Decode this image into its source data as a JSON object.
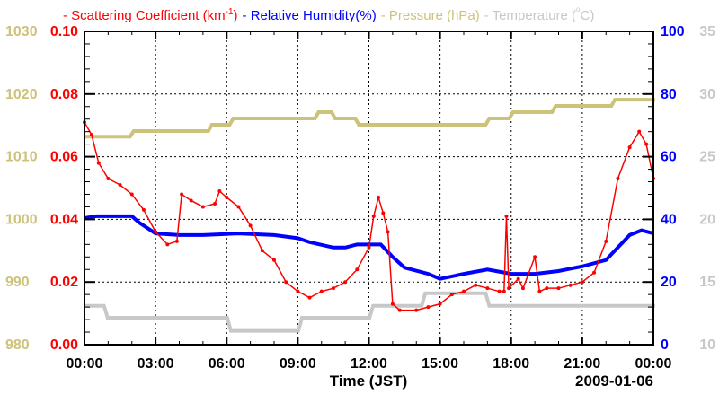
{
  "chart_data": {
    "type": "line",
    "title": "",
    "xlabel": "Time (JST)",
    "date_label": "2009-01-06",
    "xlim": [
      0,
      24
    ],
    "x_ticks": [
      0,
      3,
      6,
      9,
      12,
      15,
      18,
      21,
      24
    ],
    "x_tick_labels": [
      "00:00",
      "03:00",
      "06:00",
      "09:00",
      "12:00",
      "15:00",
      "18:00",
      "21:00",
      "00:00"
    ],
    "grid": true,
    "legend_position": "top",
    "axes": {
      "scatter": {
        "range": [
          0,
          0.1
        ],
        "ticks": [
          "0.00",
          "0.02",
          "0.04",
          "0.06",
          "0.08",
          "0.10"
        ],
        "side": "left-inner",
        "color": "#ff0000"
      },
      "pressure": {
        "range": [
          980,
          1030
        ],
        "ticks": [
          "980",
          "990",
          "1000",
          "1010",
          "1020",
          "1030"
        ],
        "side": "left-outer",
        "color": "#cdc27a"
      },
      "humidity": {
        "range": [
          0,
          100
        ],
        "ticks": [
          "0",
          "20",
          "40",
          "60",
          "80",
          "100"
        ],
        "side": "right-inner",
        "color": "#0000ff"
      },
      "temperature": {
        "range": [
          10,
          35
        ],
        "ticks": [
          "10",
          "15",
          "20",
          "25",
          "30",
          "35"
        ],
        "side": "right-outer",
        "color": "#c8c8c8"
      }
    },
    "series": [
      {
        "name": "Scattering Coefficient",
        "legend": "- Scattering Coefficient (km",
        "legend_sup": "-1",
        "legend_tail": ")",
        "axis": "scatter",
        "color": "#ff0000",
        "markers": true,
        "points": [
          [
            0,
            0.071
          ],
          [
            0.3,
            0.067
          ],
          [
            0.6,
            0.058
          ],
          [
            1,
            0.053
          ],
          [
            1.5,
            0.051
          ],
          [
            2,
            0.048
          ],
          [
            2.5,
            0.043
          ],
          [
            3,
            0.036
          ],
          [
            3.5,
            0.032
          ],
          [
            3.9,
            0.033
          ],
          [
            4.1,
            0.048
          ],
          [
            4.5,
            0.046
          ],
          [
            5,
            0.044
          ],
          [
            5.5,
            0.045
          ],
          [
            5.7,
            0.049
          ],
          [
            6,
            0.047
          ],
          [
            6.5,
            0.044
          ],
          [
            7,
            0.038
          ],
          [
            7.5,
            0.03
          ],
          [
            8,
            0.027
          ],
          [
            8.5,
            0.02
          ],
          [
            9,
            0.017
          ],
          [
            9.5,
            0.015
          ],
          [
            10,
            0.017
          ],
          [
            10.5,
            0.018
          ],
          [
            11,
            0.02
          ],
          [
            11.5,
            0.024
          ],
          [
            12,
            0.031
          ],
          [
            12.2,
            0.041
          ],
          [
            12.4,
            0.047
          ],
          [
            12.6,
            0.042
          ],
          [
            12.8,
            0.036
          ],
          [
            13,
            0.013
          ],
          [
            13.3,
            0.011
          ],
          [
            14,
            0.011
          ],
          [
            14.5,
            0.012
          ],
          [
            15,
            0.013
          ],
          [
            15.5,
            0.016
          ],
          [
            16,
            0.017
          ],
          [
            16.5,
            0.019
          ],
          [
            17,
            0.018
          ],
          [
            17.5,
            0.017
          ],
          [
            17.7,
            0.017
          ],
          [
            17.8,
            0.041
          ],
          [
            17.9,
            0.018
          ],
          [
            18.3,
            0.021
          ],
          [
            18.5,
            0.018
          ],
          [
            19,
            0.028
          ],
          [
            19.2,
            0.017
          ],
          [
            19.5,
            0.018
          ],
          [
            20,
            0.018
          ],
          [
            20.5,
            0.019
          ],
          [
            21,
            0.02
          ],
          [
            21.5,
            0.023
          ],
          [
            22,
            0.033
          ],
          [
            22.5,
            0.053
          ],
          [
            23,
            0.063
          ],
          [
            23.4,
            0.068
          ],
          [
            23.7,
            0.064
          ],
          [
            24,
            0.053
          ]
        ]
      },
      {
        "name": "Relative Humidity",
        "legend": "- Relative Humidity(%)",
        "axis": "humidity",
        "color": "#0000ff",
        "markers": false,
        "points": [
          [
            0,
            40.4
          ],
          [
            0.5,
            41
          ],
          [
            2,
            41
          ],
          [
            2.3,
            39
          ],
          [
            3,
            35.5
          ],
          [
            4,
            35
          ],
          [
            5,
            35
          ],
          [
            6.5,
            35.5
          ],
          [
            8,
            35
          ],
          [
            9,
            34
          ],
          [
            9.5,
            32.7
          ],
          [
            10.5,
            31
          ],
          [
            11,
            31
          ],
          [
            11.5,
            32
          ],
          [
            12.5,
            32
          ],
          [
            13,
            28
          ],
          [
            13.5,
            24.6
          ],
          [
            14.5,
            22.6
          ],
          [
            15,
            21
          ],
          [
            16,
            22.6
          ],
          [
            17,
            24
          ],
          [
            18,
            22.6
          ],
          [
            19,
            22.6
          ],
          [
            20,
            23.5
          ],
          [
            21,
            25
          ],
          [
            22,
            27
          ],
          [
            22.5,
            31
          ],
          [
            23,
            35
          ],
          [
            23.5,
            36.5
          ],
          [
            24,
            35.5
          ]
        ]
      },
      {
        "name": "Pressure",
        "legend": "- Pressure (hPa)",
        "axis": "pressure",
        "color": "#cdc27a",
        "markers": false,
        "step": true,
        "points": [
          [
            0,
            1013.2
          ],
          [
            2,
            1014.1
          ],
          [
            5.3,
            1015.1
          ],
          [
            6.2,
            1016.1
          ],
          [
            9.8,
            1017.1
          ],
          [
            10.5,
            1016.1
          ],
          [
            11.5,
            1015.1
          ],
          [
            17,
            1016.1
          ],
          [
            18,
            1017.1
          ],
          [
            19.8,
            1018.1
          ],
          [
            22.3,
            1019.1
          ],
          [
            24,
            1019.1
          ]
        ]
      },
      {
        "name": "Temperature",
        "legend": "- Temperature (",
        "legend_deg": "o",
        "legend_tail": "C)",
        "axis": "temperature",
        "color": "#c8c8c8",
        "markers": false,
        "step": true,
        "points": [
          [
            0,
            13.1
          ],
          [
            0.9,
            12.15
          ],
          [
            6.1,
            11.1
          ],
          [
            9.1,
            12.15
          ],
          [
            12.1,
            13.1
          ],
          [
            14.3,
            14.1
          ],
          [
            17,
            13.1
          ],
          [
            24,
            13.1
          ]
        ]
      }
    ]
  }
}
